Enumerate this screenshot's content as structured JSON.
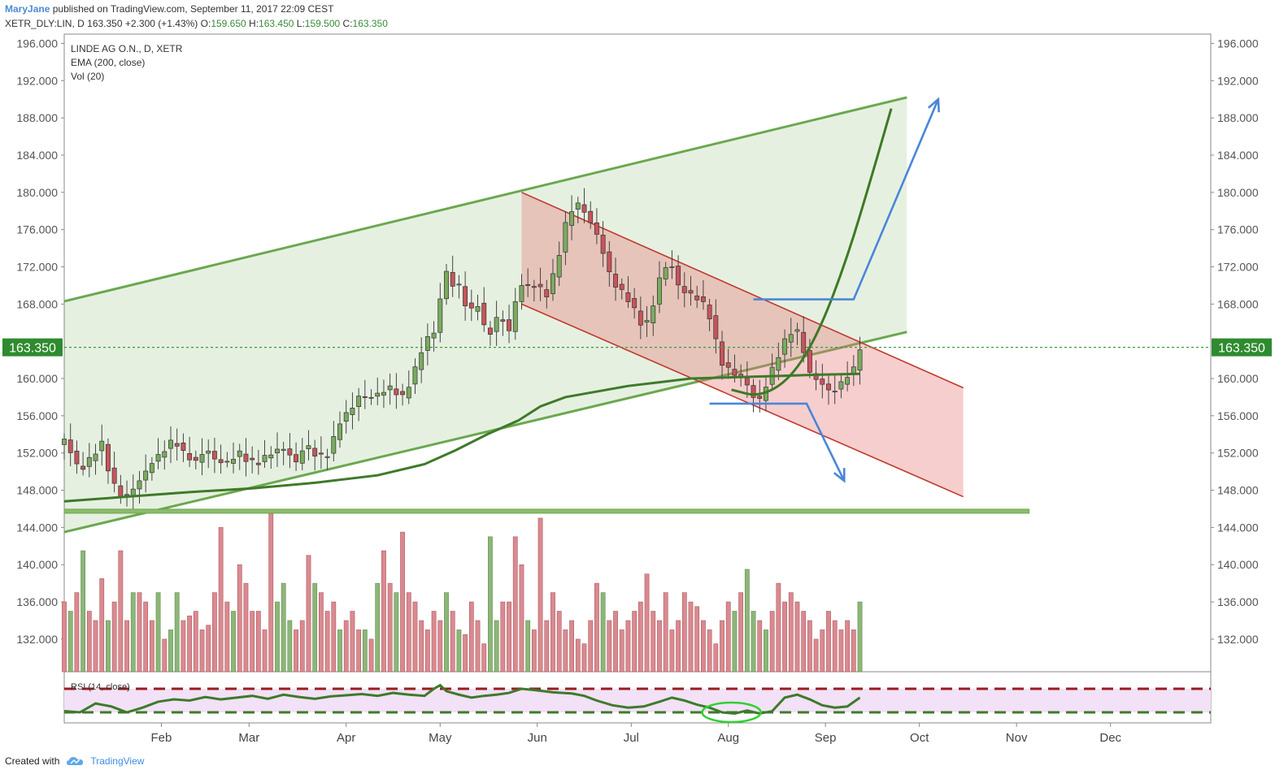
{
  "header": {
    "user": "MaryJane",
    "published": "published on TradingView.com, September 11, 2017 22:09 CEST"
  },
  "symbol_bar": {
    "symbol": "XETR_DLY:LIN, D",
    "last": "163.350",
    "change": "+2.300 (+1.43%)",
    "o_label": "O:",
    "o": "159.650",
    "h_label": "H:",
    "h": "163.450",
    "l_label": "L:",
    "l": "159.500",
    "c_label": "C:",
    "c": "163.350"
  },
  "legend": {
    "title": "LINDE AG O.N., D, XETR",
    "ema": "EMA (200, close)",
    "vol": "Vol (20)"
  },
  "rsi_label": "RSI (14, close)",
  "footer": {
    "created_with": "Created with",
    "brand": "TradingView"
  },
  "colors": {
    "up": "#7aab5e",
    "down": "#c7545a",
    "vol_up": "#8db67a",
    "vol_down": "#d98a90",
    "ema": "#3e7a2a",
    "channel_green": "#6aa84f",
    "channel_red": "#c0392b",
    "arrow_blue": "#4a86d8",
    "price_label": "#2e8b2e",
    "rsi_band": "#f2e1f7"
  },
  "chart_data": {
    "type": "candlestick",
    "last_price": "163.350",
    "y_ticks": [
      "196.000",
      "192.000",
      "188.000",
      "184.000",
      "180.000",
      "176.000",
      "172.000",
      "168.000",
      "160.000",
      "156.000",
      "152.000",
      "148.000",
      "144.000",
      "140.000",
      "136.000",
      "132.000"
    ],
    "y_range": [
      128.5,
      197
    ],
    "x_ticks": [
      "Feb",
      "Mar",
      "Apr",
      "May",
      "Jun",
      "Jul",
      "Aug",
      "Sep",
      "Oct",
      "Nov",
      "Dec"
    ],
    "x_tick_days": [
      31,
      59,
      90,
      120,
      151,
      181,
      212,
      243,
      273,
      304,
      334
    ],
    "x_range_days": [
      0,
      366
    ],
    "close_anchors": [
      [
        0,
        153.5
      ],
      [
        5,
        150
      ],
      [
        12,
        153
      ],
      [
        15,
        149
      ],
      [
        19,
        147
      ],
      [
        24,
        149
      ],
      [
        28,
        151
      ],
      [
        31,
        152
      ],
      [
        35,
        153.5
      ],
      [
        38,
        152
      ],
      [
        42,
        151
      ],
      [
        45,
        152.5
      ],
      [
        49,
        151
      ],
      [
        52,
        151
      ],
      [
        56,
        152
      ],
      [
        59,
        151
      ],
      [
        62,
        151
      ],
      [
        66,
        152
      ],
      [
        70,
        152.5
      ],
      [
        74,
        151
      ],
      [
        77,
        153
      ],
      [
        81,
        151.5
      ],
      [
        85,
        152
      ],
      [
        87,
        155
      ],
      [
        91,
        156.5
      ],
      [
        94,
        158
      ],
      [
        98,
        158
      ],
      [
        101,
        158.5
      ],
      [
        104,
        159
      ],
      [
        108,
        158
      ],
      [
        111,
        160
      ],
      [
        115,
        164
      ],
      [
        118,
        165
      ],
      [
        120,
        168.5
      ],
      [
        121,
        173
      ],
      [
        123,
        170
      ],
      [
        126,
        170
      ],
      [
        129,
        167
      ],
      [
        132,
        168
      ],
      [
        134,
        165.5
      ],
      [
        136,
        165
      ],
      [
        139,
        167
      ],
      [
        142,
        165
      ],
      [
        145,
        170
      ],
      [
        148,
        170
      ],
      [
        151,
        170
      ],
      [
        154,
        169
      ],
      [
        157,
        172
      ],
      [
        160,
        176.5
      ],
      [
        163,
        179
      ],
      [
        166,
        178
      ],
      [
        169,
        176
      ],
      [
        171,
        175
      ],
      [
        173,
        172
      ],
      [
        176,
        170
      ],
      [
        179,
        169
      ],
      [
        181,
        168
      ],
      [
        184,
        166
      ],
      [
        186,
        166
      ],
      [
        188,
        168
      ],
      [
        191,
        172
      ],
      [
        194,
        172
      ],
      [
        196,
        170
      ],
      [
        199,
        169
      ],
      [
        201,
        169
      ],
      [
        204,
        168
      ],
      [
        207,
        166
      ],
      [
        209,
        162
      ],
      [
        212,
        161
      ],
      [
        214,
        160.5
      ],
      [
        216,
        160
      ],
      [
        219,
        159
      ],
      [
        221,
        157
      ],
      [
        223,
        158.5
      ],
      [
        225,
        160
      ],
      [
        227,
        162
      ],
      [
        229,
        163
      ],
      [
        231,
        165
      ],
      [
        234,
        165
      ],
      [
        236,
        163
      ],
      [
        238,
        160.5
      ],
      [
        240,
        160
      ],
      [
        243,
        159
      ],
      [
        245,
        158.5
      ],
      [
        247,
        159
      ],
      [
        249,
        160
      ],
      [
        252,
        161
      ],
      [
        254,
        163.35
      ]
    ],
    "ema200": [
      [
        0,
        146.8
      ],
      [
        20,
        147.3
      ],
      [
        40,
        147.8
      ],
      [
        60,
        148.2
      ],
      [
        80,
        148.8
      ],
      [
        100,
        149.6
      ],
      [
        115,
        150.8
      ],
      [
        125,
        152.3
      ],
      [
        135,
        154
      ],
      [
        145,
        155.5
      ],
      [
        152,
        157
      ],
      [
        160,
        158
      ],
      [
        170,
        158.6
      ],
      [
        180,
        159.2
      ],
      [
        190,
        159.6
      ],
      [
        200,
        160
      ],
      [
        210,
        160.1
      ],
      [
        220,
        160.2
      ],
      [
        230,
        160.3
      ],
      [
        240,
        160.4
      ],
      [
        254,
        160.5
      ]
    ],
    "green_channel": {
      "upper": [
        [
          0,
          168.3
        ],
        [
          269,
          190.2
        ]
      ],
      "lower": [
        [
          0,
          143.5
        ],
        [
          269,
          165
        ]
      ],
      "peak_day": 146
    },
    "red_channel": {
      "upper": [
        [
          146,
          180
        ],
        [
          287,
          159
        ]
      ],
      "lower": [
        [
          146,
          168
        ],
        [
          287,
          147.3
        ]
      ]
    },
    "support_line": 145.7,
    "forecast_curve": [
      [
        213,
        158.8
      ],
      [
        222,
        158
      ],
      [
        232,
        160
      ],
      [
        241,
        165
      ],
      [
        250,
        173
      ],
      [
        258,
        182
      ],
      [
        264,
        189
      ]
    ],
    "breakout_path_up": [
      [
        220,
        168.5
      ],
      [
        252,
        168.5
      ],
      [
        279,
        190
      ]
    ],
    "breakdown_path_down": [
      [
        206,
        157.3
      ],
      [
        237,
        157.3
      ],
      [
        249,
        149
      ]
    ],
    "rsi": {
      "upper_level": 70,
      "lower_level": 30,
      "highlight_day": 213,
      "values": [
        [
          0,
          32
        ],
        [
          5,
          30
        ],
        [
          10,
          45
        ],
        [
          15,
          40
        ],
        [
          20,
          30
        ],
        [
          25,
          38
        ],
        [
          30,
          48
        ],
        [
          35,
          52
        ],
        [
          40,
          50
        ],
        [
          45,
          56
        ],
        [
          50,
          52
        ],
        [
          55,
          55
        ],
        [
          60,
          58
        ],
        [
          65,
          53
        ],
        [
          70,
          60
        ],
        [
          75,
          56
        ],
        [
          80,
          53
        ],
        [
          85,
          57
        ],
        [
          90,
          59
        ],
        [
          95,
          61
        ],
        [
          100,
          58
        ],
        [
          105,
          63
        ],
        [
          110,
          60
        ],
        [
          115,
          58
        ],
        [
          118,
          70
        ],
        [
          120,
          76
        ],
        [
          122,
          66
        ],
        [
          126,
          60
        ],
        [
          130,
          55
        ],
        [
          134,
          58
        ],
        [
          138,
          60
        ],
        [
          142,
          63
        ],
        [
          146,
          70
        ],
        [
          150,
          68
        ],
        [
          156,
          64
        ],
        [
          162,
          62
        ],
        [
          166,
          58
        ],
        [
          170,
          50
        ],
        [
          175,
          42
        ],
        [
          180,
          38
        ],
        [
          185,
          40
        ],
        [
          190,
          48
        ],
        [
          194,
          55
        ],
        [
          198,
          50
        ],
        [
          202,
          43
        ],
        [
          206,
          38
        ],
        [
          210,
          30
        ],
        [
          214,
          28
        ],
        [
          218,
          33
        ],
        [
          222,
          28
        ],
        [
          226,
          32
        ],
        [
          230,
          55
        ],
        [
          234,
          60
        ],
        [
          238,
          52
        ],
        [
          242,
          42
        ],
        [
          246,
          38
        ],
        [
          250,
          40
        ],
        [
          254,
          55
        ]
      ]
    },
    "volume": {
      "up_days": [
        2,
        6,
        14,
        22,
        30,
        34,
        36,
        39,
        45,
        47,
        53,
        54,
        61,
        68,
        70,
        72,
        73,
        77,
        80,
        85,
        88,
        96,
        100,
        106,
        113,
        119,
        122,
        126,
        131,
        136,
        138,
        141,
        148,
        153,
        157,
        161,
        165,
        172,
        177,
        185,
        187,
        193,
        197,
        205,
        209,
        214,
        218,
        220,
        224,
        231,
        235,
        239,
        243,
        247,
        251,
        254
      ],
      "values": [
        [
          0,
          136
        ],
        [
          2,
          135
        ],
        [
          4,
          137
        ],
        [
          6,
          141.5
        ],
        [
          8,
          135
        ],
        [
          10,
          134
        ],
        [
          12,
          138.5
        ],
        [
          14,
          134
        ],
        [
          16,
          136
        ],
        [
          18,
          141.5
        ],
        [
          20,
          134
        ],
        [
          22,
          137
        ],
        [
          24,
          137
        ],
        [
          26,
          136
        ],
        [
          28,
          134
        ],
        [
          30,
          137
        ],
        [
          32,
          132
        ],
        [
          34,
          133
        ],
        [
          36,
          137
        ],
        [
          38,
          134
        ],
        [
          40,
          134.5
        ],
        [
          42,
          135
        ],
        [
          44,
          133
        ],
        [
          46,
          133.5
        ],
        [
          48,
          137
        ],
        [
          50,
          144
        ],
        [
          52,
          136
        ],
        [
          54,
          135
        ],
        [
          56,
          140
        ],
        [
          58,
          138
        ],
        [
          60,
          135
        ],
        [
          62,
          135
        ],
        [
          64,
          133
        ],
        [
          66,
          145.5
        ],
        [
          68,
          136
        ],
        [
          70,
          138
        ],
        [
          72,
          134
        ],
        [
          74,
          133
        ],
        [
          76,
          134
        ],
        [
          78,
          141
        ],
        [
          80,
          138
        ],
        [
          82,
          137
        ],
        [
          84,
          135
        ],
        [
          86,
          136
        ],
        [
          88,
          133
        ],
        [
          90,
          134
        ],
        [
          92,
          135
        ],
        [
          94,
          133
        ],
        [
          96,
          133
        ],
        [
          98,
          132
        ],
        [
          100,
          138
        ],
        [
          102,
          141.5
        ],
        [
          104,
          138
        ],
        [
          106,
          137
        ],
        [
          108,
          143.5
        ],
        [
          110,
          137
        ],
        [
          112,
          136
        ],
        [
          114,
          134
        ],
        [
          116,
          133
        ],
        [
          118,
          135
        ],
        [
          120,
          134
        ],
        [
          122,
          137
        ],
        [
          124,
          135
        ],
        [
          126,
          133
        ],
        [
          128,
          132.5
        ],
        [
          130,
          136
        ],
        [
          132,
          134
        ],
        [
          134,
          131.5
        ],
        [
          136,
          143
        ],
        [
          138,
          134
        ],
        [
          140,
          136
        ],
        [
          142,
          136
        ],
        [
          144,
          143
        ],
        [
          146,
          140
        ],
        [
          148,
          134
        ],
        [
          150,
          133
        ],
        [
          152,
          145
        ],
        [
          154,
          134
        ],
        [
          156,
          137
        ],
        [
          158,
          135
        ],
        [
          160,
          133
        ],
        [
          162,
          134
        ],
        [
          164,
          132
        ],
        [
          166,
          131.5
        ],
        [
          168,
          134
        ],
        [
          170,
          138
        ],
        [
          172,
          137
        ],
        [
          174,
          134
        ],
        [
          176,
          135
        ],
        [
          178,
          133
        ],
        [
          180,
          134
        ],
        [
          182,
          135
        ],
        [
          184,
          136
        ],
        [
          186,
          139
        ],
        [
          188,
          135
        ],
        [
          190,
          134
        ],
        [
          192,
          137
        ],
        [
          194,
          133
        ],
        [
          196,
          134
        ],
        [
          198,
          137
        ],
        [
          200,
          136
        ],
        [
          202,
          135.5
        ],
        [
          204,
          134
        ],
        [
          206,
          133
        ],
        [
          208,
          131.5
        ],
        [
          210,
          134
        ],
        [
          212,
          136
        ],
        [
          214,
          135
        ],
        [
          216,
          137
        ],
        [
          218,
          139.5
        ],
        [
          220,
          135
        ],
        [
          222,
          134
        ],
        [
          224,
          133
        ],
        [
          226,
          135
        ],
        [
          228,
          138
        ],
        [
          230,
          136
        ],
        [
          232,
          137
        ],
        [
          234,
          136
        ],
        [
          236,
          135
        ],
        [
          238,
          134
        ],
        [
          240,
          132
        ],
        [
          242,
          133
        ],
        [
          244,
          135
        ],
        [
          246,
          134
        ],
        [
          248,
          133
        ],
        [
          250,
          134
        ],
        [
          252,
          133
        ],
        [
          254,
          136
        ]
      ]
    }
  }
}
